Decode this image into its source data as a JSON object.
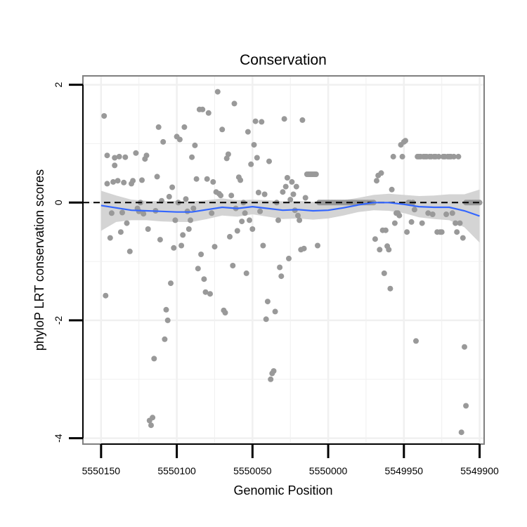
{
  "chart_data": {
    "type": "scatter",
    "title": "Conservation",
    "xlabel": "Genomic Position",
    "ylabel": "phyloP LRT conservation scores",
    "x_reversed": true,
    "xlim": [
      5550162,
      5549897
    ],
    "ylim": [
      -4.1,
      2.15
    ],
    "x_ticks": [
      5550150,
      5550100,
      5550050,
      5550000,
      5549950,
      5549900
    ],
    "x_tick_labels": [
      "5550150",
      "5550100",
      "5550050",
      "5550000",
      "5549950",
      "5549900"
    ],
    "y_ticks": [
      2,
      0,
      -2,
      -4
    ],
    "y_tick_labels": [
      "2",
      "0",
      "-2",
      "-4"
    ],
    "reference_line_y": 0,
    "grid": true,
    "colors": {
      "points": "#999999",
      "smooth_line": "#3366ff",
      "confidence_band": "#cfcfcf",
      "panel_border": "#7f7f7f",
      "reference_line": "#000000",
      "grid": "#f0f0f0"
    },
    "points": [
      [
        5550148,
        1.47
      ],
      [
        5550147,
        -1.58
      ],
      [
        5550146,
        0.32
      ],
      [
        5550146,
        0.8
      ],
      [
        5550144,
        -0.6
      ],
      [
        5550143,
        -0.18
      ],
      [
        5550142,
        0.35
      ],
      [
        5550141,
        0.63
      ],
      [
        5550141,
        0.76
      ],
      [
        5550139,
        0.37
      ],
      [
        5550138,
        0.78
      ],
      [
        5550137,
        -0.5
      ],
      [
        5550136,
        -0.17
      ],
      [
        5550135,
        0.34
      ],
      [
        5550134,
        0.77
      ],
      [
        5550133,
        -0.35
      ],
      [
        5550131,
        -0.83
      ],
      [
        5550130,
        0.32
      ],
      [
        5550129,
        0.37
      ],
      [
        5550127,
        0.84
      ],
      [
        5550126,
        -0.1
      ],
      [
        5550125,
        -0.15
      ],
      [
        5550124,
        0.0
      ],
      [
        5550123,
        0.38
      ],
      [
        5550122,
        -0.19
      ],
      [
        5550121,
        0.74
      ],
      [
        5550120,
        0.8
      ],
      [
        5550119,
        -0.45
      ],
      [
        5550118,
        -3.7
      ],
      [
        5550117,
        -3.78
      ],
      [
        5550116,
        -3.65
      ],
      [
        5550115,
        -2.65
      ],
      [
        5550114,
        -0.14
      ],
      [
        5550113,
        0.44
      ],
      [
        5550112,
        1.28
      ],
      [
        5550111,
        -0.63
      ],
      [
        5550110,
        0.03
      ],
      [
        5550109,
        1.03
      ],
      [
        5550108,
        -2.32
      ],
      [
        5550107,
        -1.82
      ],
      [
        5550106,
        -2.0
      ],
      [
        5550105,
        0.1
      ],
      [
        5550104,
        -1.37
      ],
      [
        5550103,
        0.26
      ],
      [
        5550102,
        -0.77
      ],
      [
        5550101,
        -0.3
      ],
      [
        5550100,
        1.12
      ],
      [
        5550099,
        0.0
      ],
      [
        5550098,
        1.07
      ],
      [
        5550097,
        -0.73
      ],
      [
        5550096,
        -0.55
      ],
      [
        5550095,
        1.28
      ],
      [
        5550094,
        0.06
      ],
      [
        5550093,
        -0.15
      ],
      [
        5550092,
        -0.45
      ],
      [
        5550091,
        -0.3
      ],
      [
        5550090,
        0.77
      ],
      [
        5550089,
        -0.1
      ],
      [
        5550088,
        0.97
      ],
      [
        5550087,
        0.4
      ],
      [
        5550086,
        -1.12
      ],
      [
        5550085,
        1.58
      ],
      [
        5550084,
        -0.88
      ],
      [
        5550083,
        1.58
      ],
      [
        5550082,
        -1.3
      ],
      [
        5550081,
        -1.52
      ],
      [
        5550080,
        0.4
      ],
      [
        5550079,
        1.52
      ],
      [
        5550078,
        -1.55
      ],
      [
        5550077,
        -0.18
      ],
      [
        5550076,
        0.35
      ],
      [
        5550075,
        -0.75
      ],
      [
        5550074,
        0.18
      ],
      [
        5550073,
        1.88
      ],
      [
        5550072,
        0.15
      ],
      [
        5550071,
        0.12
      ],
      [
        5550070,
        1.24
      ],
      [
        5550069,
        -1.83
      ],
      [
        5550068,
        -1.87
      ],
      [
        5550067,
        0.75
      ],
      [
        5550066,
        0.82
      ],
      [
        5550065,
        -0.58
      ],
      [
        5550064,
        0.12
      ],
      [
        5550063,
        -1.07
      ],
      [
        5550062,
        1.68
      ],
      [
        5550061,
        -0.1
      ],
      [
        5550060,
        -0.48
      ],
      [
        5550059,
        0.43
      ],
      [
        5550058,
        0.38
      ],
      [
        5550057,
        -0.32
      ],
      [
        5550056,
        0.0
      ],
      [
        5550055,
        -0.18
      ],
      [
        5550054,
        -1.2
      ],
      [
        5550053,
        1.2
      ],
      [
        5550052,
        -0.3
      ],
      [
        5550051,
        0.65
      ],
      [
        5550050,
        -0.45
      ],
      [
        5550049,
        0.98
      ],
      [
        5550048,
        1.38
      ],
      [
        5550047,
        0.76
      ],
      [
        5550046,
        0.17
      ],
      [
        5550045,
        -0.15
      ],
      [
        5550044,
        1.37
      ],
      [
        5550043,
        -0.73
      ],
      [
        5550042,
        0.14
      ],
      [
        5550041,
        -1.98
      ],
      [
        5550040,
        -1.68
      ],
      [
        5550039,
        0.7
      ],
      [
        5550038,
        -3.0
      ],
      [
        5550037,
        -2.9
      ],
      [
        5550036,
        -2.86
      ],
      [
        5550035,
        -1.85
      ],
      [
        5550034,
        0.0
      ],
      [
        5550033,
        -0.3
      ],
      [
        5550032,
        -1.1
      ],
      [
        5550031,
        -1.25
      ],
      [
        5550030,
        0.18
      ],
      [
        5550029,
        1.42
      ],
      [
        5550028,
        0.27
      ],
      [
        5550027,
        0.42
      ],
      [
        5550026,
        -0.95
      ],
      [
        5550025,
        0.05
      ],
      [
        5550024,
        0.35
      ],
      [
        5550023,
        0.14
      ],
      [
        5550022,
        -0.13
      ],
      [
        5550021,
        0.27
      ],
      [
        5550020,
        -0.22
      ],
      [
        5550019,
        -0.3
      ],
      [
        5550018,
        -0.8
      ],
      [
        5550017,
        1.4
      ],
      [
        5550016,
        -0.78
      ],
      [
        5550015,
        0.08
      ],
      [
        5550014,
        0.48
      ],
      [
        5550013,
        0.48
      ],
      [
        5550012,
        0.48
      ],
      [
        5550011,
        0.48
      ],
      [
        5550010,
        0.48
      ],
      [
        5550009,
        0.48
      ],
      [
        5550008,
        0.48
      ],
      [
        5550007,
        -0.73
      ],
      [
        5550006,
        0.0
      ],
      [
        5550005,
        0.0
      ],
      [
        5550004,
        0.0
      ],
      [
        5550003,
        0.0
      ],
      [
        5550002,
        0.0
      ],
      [
        5550001,
        0.0
      ],
      [
        5550000,
        0.0
      ],
      [
        5549999,
        0.0
      ],
      [
        5549998,
        0.0
      ],
      [
        5549997,
        0.0
      ],
      [
        5549996,
        0.0
      ],
      [
        5549995,
        0.0
      ],
      [
        5549994,
        0.0
      ],
      [
        5549993,
        0.0
      ],
      [
        5549992,
        0.0
      ],
      [
        5549991,
        0.0
      ],
      [
        5549990,
        0.0
      ],
      [
        5549989,
        0.0
      ],
      [
        5549988,
        0.0
      ],
      [
        5549987,
        0.0
      ],
      [
        5549986,
        0.0
      ],
      [
        5549985,
        0.0
      ],
      [
        5549984,
        0.0
      ],
      [
        5549983,
        0.0
      ],
      [
        5549982,
        0.0
      ],
      [
        5549981,
        0.0
      ],
      [
        5549980,
        0.0
      ],
      [
        5549979,
        0.0
      ],
      [
        5549978,
        0.0
      ],
      [
        5549977,
        0.0
      ],
      [
        5549976,
        0.0
      ],
      [
        5549975,
        0.0
      ],
      [
        5549974,
        0.0
      ],
      [
        5549973,
        0.0
      ],
      [
        5549972,
        0.0
      ],
      [
        5549971,
        0.0
      ],
      [
        5549970,
        0.0
      ],
      [
        5549969,
        -0.62
      ],
      [
        5549968,
        0.37
      ],
      [
        5549967,
        0.46
      ],
      [
        5549966,
        -0.8
      ],
      [
        5549965,
        0.5
      ],
      [
        5549964,
        -0.47
      ],
      [
        5549963,
        -1.2
      ],
      [
        5549962,
        -0.47
      ],
      [
        5549961,
        -0.74
      ],
      [
        5549960,
        -0.8
      ],
      [
        5549959,
        -1.46
      ],
      [
        5549958,
        0.22
      ],
      [
        5549957,
        0.78
      ],
      [
        5549956,
        -0.35
      ],
      [
        5549955,
        -0.18
      ],
      [
        5549954,
        -0.18
      ],
      [
        5549953,
        -0.22
      ],
      [
        5549952,
        0.98
      ],
      [
        5549951,
        0.78
      ],
      [
        5549950,
        1.03
      ],
      [
        5549949,
        1.05
      ],
      [
        5549948,
        -0.5
      ],
      [
        5549947,
        0.0
      ],
      [
        5549946,
        0.0
      ],
      [
        5549945,
        -0.33
      ],
      [
        5549944,
        0.0
      ],
      [
        5549943,
        -0.12
      ],
      [
        5549942,
        -2.35
      ],
      [
        5549941,
        0.78
      ],
      [
        5549940,
        0.78
      ],
      [
        5549939,
        0.78
      ],
      [
        5549938,
        -0.35
      ],
      [
        5549937,
        0.78
      ],
      [
        5549936,
        0.78
      ],
      [
        5549935,
        0.78
      ],
      [
        5549934,
        -0.18
      ],
      [
        5549933,
        0.78
      ],
      [
        5549932,
        0.78
      ],
      [
        5549931,
        -0.2
      ],
      [
        5549930,
        0.78
      ],
      [
        5549929,
        0.78
      ],
      [
        5549928,
        -0.5
      ],
      [
        5549927,
        0.78
      ],
      [
        5549926,
        -0.5
      ],
      [
        5549925,
        -0.5
      ],
      [
        5549924,
        0.78
      ],
      [
        5549923,
        0.78
      ],
      [
        5549922,
        -0.2
      ],
      [
        5549921,
        0.78
      ],
      [
        5549920,
        0.78
      ],
      [
        5549919,
        0.78
      ],
      [
        5549918,
        -0.18
      ],
      [
        5549917,
        0.78
      ],
      [
        5549916,
        -0.35
      ],
      [
        5549915,
        -0.5
      ],
      [
        5549914,
        0.78
      ],
      [
        5549913,
        -0.35
      ],
      [
        5549912,
        -3.9
      ],
      [
        5549911,
        -0.6
      ],
      [
        5549910,
        -2.45
      ],
      [
        5549909,
        0.0
      ],
      [
        5549909,
        -3.45
      ],
      [
        5549908,
        0.0
      ],
      [
        5549907,
        0.0
      ],
      [
        5549906,
        0.0
      ],
      [
        5549905,
        0.0
      ],
      [
        5549904,
        0.0
      ],
      [
        5549903,
        0.0
      ],
      [
        5549902,
        0.0
      ],
      [
        5549901,
        0.0
      ],
      [
        5549900,
        0.0
      ]
    ],
    "smooth": [
      [
        5550150,
        -0.05
      ],
      [
        5550140,
        -0.09
      ],
      [
        5550130,
        -0.13
      ],
      [
        5550120,
        -0.14
      ],
      [
        5550110,
        -0.15
      ],
      [
        5550100,
        -0.16
      ],
      [
        5550090,
        -0.16
      ],
      [
        5550080,
        -0.12
      ],
      [
        5550070,
        -0.08
      ],
      [
        5550060,
        -0.1
      ],
      [
        5550050,
        -0.07
      ],
      [
        5550040,
        -0.1
      ],
      [
        5550030,
        -0.13
      ],
      [
        5550020,
        -0.12
      ],
      [
        5550010,
        -0.14
      ],
      [
        5550000,
        -0.13
      ],
      [
        5549990,
        -0.09
      ],
      [
        5549980,
        -0.04
      ],
      [
        5549970,
        0.0
      ],
      [
        5549960,
        0.0
      ],
      [
        5549950,
        -0.03
      ],
      [
        5549940,
        -0.07
      ],
      [
        5549930,
        -0.08
      ],
      [
        5549920,
        -0.08
      ],
      [
        5549910,
        -0.14
      ],
      [
        5549900,
        -0.23
      ]
    ],
    "band_upper": [
      [
        5550150,
        0.2
      ],
      [
        5550140,
        0.12
      ],
      [
        5550130,
        0.05
      ],
      [
        5550120,
        0.03
      ],
      [
        5550110,
        0.02
      ],
      [
        5550100,
        0.03
      ],
      [
        5550090,
        0.02
      ],
      [
        5550080,
        0.04
      ],
      [
        5550070,
        0.07
      ],
      [
        5550060,
        0.04
      ],
      [
        5550050,
        0.05
      ],
      [
        5550040,
        0.04
      ],
      [
        5550030,
        0.02
      ],
      [
        5550020,
        0.03
      ],
      [
        5550010,
        0.01
      ],
      [
        5550000,
        0.02
      ],
      [
        5549990,
        0.04
      ],
      [
        5549980,
        0.08
      ],
      [
        5549970,
        0.13
      ],
      [
        5549960,
        0.15
      ],
      [
        5549950,
        0.13
      ],
      [
        5549940,
        0.11
      ],
      [
        5549930,
        0.12
      ],
      [
        5549920,
        0.14
      ],
      [
        5549910,
        0.14
      ],
      [
        5549900,
        0.22
      ]
    ],
    "band_lower": [
      [
        5550150,
        -0.48
      ],
      [
        5550140,
        -0.33
      ],
      [
        5550130,
        -0.3
      ],
      [
        5550120,
        -0.3
      ],
      [
        5550110,
        -0.32
      ],
      [
        5550100,
        -0.33
      ],
      [
        5550090,
        -0.33
      ],
      [
        5550080,
        -0.28
      ],
      [
        5550070,
        -0.22
      ],
      [
        5550060,
        -0.24
      ],
      [
        5550050,
        -0.2
      ],
      [
        5550040,
        -0.24
      ],
      [
        5550030,
        -0.28
      ],
      [
        5550020,
        -0.27
      ],
      [
        5550010,
        -0.29
      ],
      [
        5550000,
        -0.27
      ],
      [
        5549990,
        -0.22
      ],
      [
        5549980,
        -0.16
      ],
      [
        5549970,
        -0.13
      ],
      [
        5549960,
        -0.14
      ],
      [
        5549950,
        -0.18
      ],
      [
        5549940,
        -0.25
      ],
      [
        5549930,
        -0.28
      ],
      [
        5549920,
        -0.3
      ],
      [
        5549910,
        -0.42
      ],
      [
        5549900,
        -0.68
      ]
    ]
  }
}
